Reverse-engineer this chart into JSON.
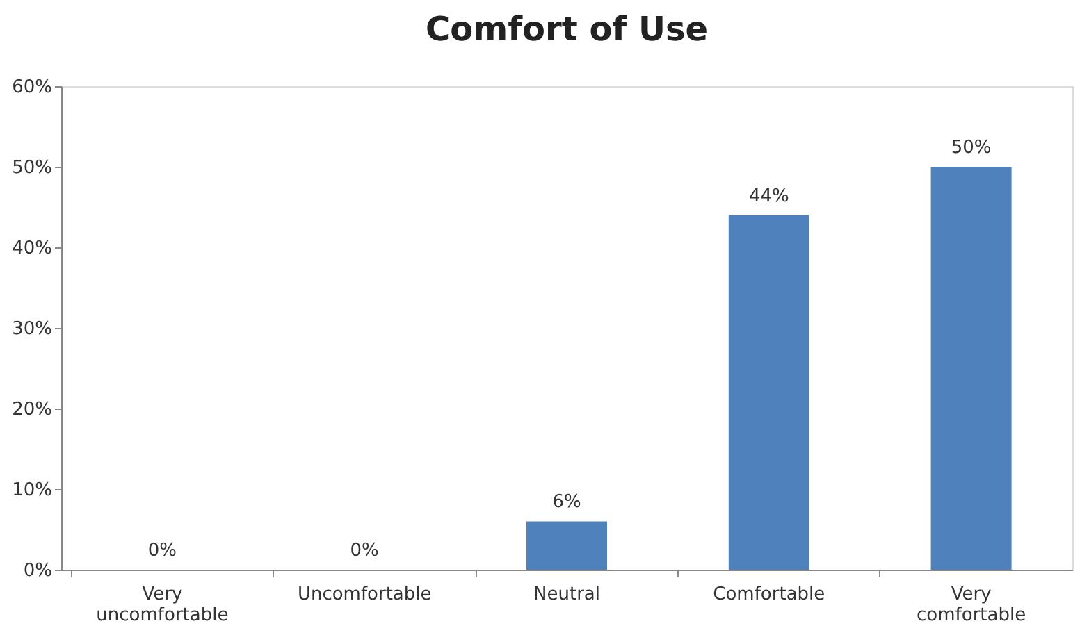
{
  "chart_data": {
    "type": "bar",
    "title": "Comfort of Use",
    "categories": [
      "Very uncomfortable",
      "Uncomfortable",
      "Neutral",
      "Comfortable",
      "Very comfortable"
    ],
    "values": [
      0,
      0,
      6,
      44,
      50
    ],
    "value_labels": [
      "0%",
      "0%",
      "6%",
      "44%",
      "50%"
    ],
    "color": "#4f81bd",
    "ylim": [
      0,
      60
    ],
    "yticks": [
      {
        "value": 0,
        "label": "0%"
      },
      {
        "value": 10,
        "label": "10%"
      },
      {
        "value": 20,
        "label": "20%"
      },
      {
        "value": 30,
        "label": "30%"
      },
      {
        "value": 40,
        "label": "40%"
      },
      {
        "value": 50,
        "label": "50%"
      },
      {
        "value": 60,
        "label": "60%"
      }
    ],
    "grid": false
  }
}
